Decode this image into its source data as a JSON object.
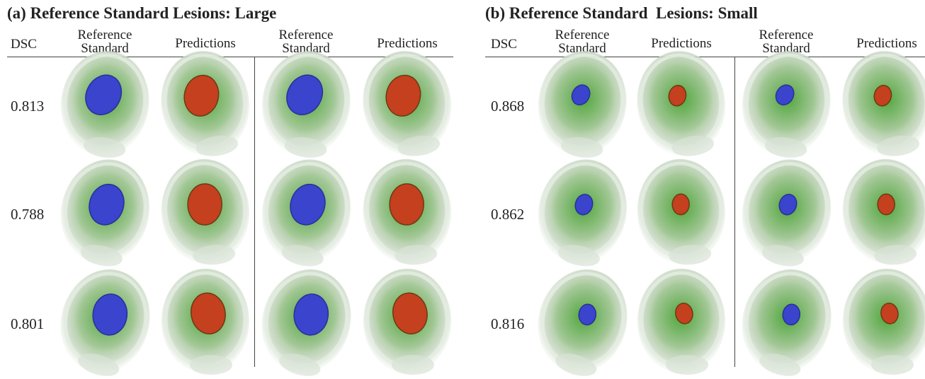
{
  "panels": [
    {
      "title": "(a) Reference Standard Lesions: Large",
      "headers": [
        "DSC",
        "Reference Standard",
        "Predictions",
        "Reference Standard",
        "Predictions"
      ],
      "rows": [
        {
          "dsc": "0.813"
        },
        {
          "dsc": "0.788"
        },
        {
          "dsc": "0.801"
        }
      ]
    },
    {
      "title": "(b) Reference Standard  Lesions: Small",
      "headers": [
        "DSC",
        "Reference Standard",
        "Predictions",
        "Reference Standard",
        "Predictions"
      ],
      "rows": [
        {
          "dsc": "0.868"
        },
        {
          "dsc": "0.862"
        },
        {
          "dsc": "0.816"
        }
      ]
    }
  ]
}
